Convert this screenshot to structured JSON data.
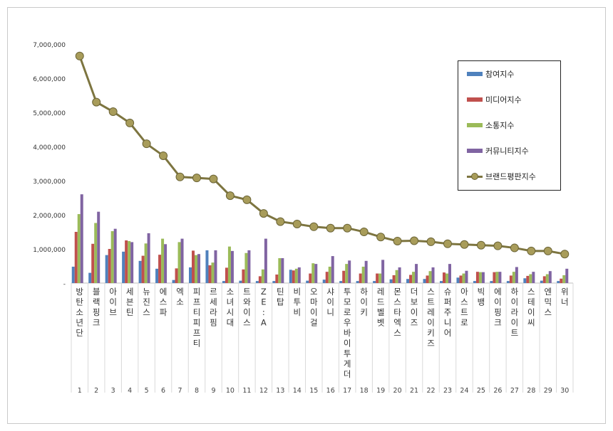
{
  "chart_data": {
    "type": "bar",
    "ylim": [
      0,
      7000000
    ],
    "yticks": [
      "-",
      "1,000,000",
      "2,000,000",
      "3,000,000",
      "4,000,000",
      "5,000,000",
      "6,000,000",
      "7,000,000"
    ],
    "ytick_values": [
      0,
      1000000,
      2000000,
      3000000,
      4000000,
      5000000,
      6000000,
      7000000
    ],
    "categories": [
      "방탄소년단",
      "블랙핑크",
      "아이브",
      "세븐틴",
      "뉴진스",
      "에스파",
      "엑소",
      "피프티피프티",
      "르세라핌",
      "소녀시대",
      "트와이스",
      "ZE:A",
      "틴탑",
      "비투비",
      "오마이걸",
      "샤이니",
      "투모로우바이투게더",
      "하이키",
      "레드벨벳",
      "몬스타엑스",
      "더보이즈",
      "스트레이키즈",
      "슈퍼주니어",
      "아스트로",
      "빅뱅",
      "에이핑크",
      "하이라이트",
      "스테이씨",
      "엔믹스",
      "위너"
    ],
    "ranks": [
      "1",
      "2",
      "3",
      "4",
      "5",
      "6",
      "7",
      "8",
      "9",
      "10",
      "11",
      "12",
      "13",
      "14",
      "15",
      "16",
      "17",
      "18",
      "19",
      "20",
      "21",
      "22",
      "23",
      "24",
      "25",
      "26",
      "27",
      "28",
      "29",
      "30"
    ],
    "series": [
      {
        "name": "참여지수",
        "color": "#4f81bd",
        "values": [
          480000,
          300000,
          820000,
          920000,
          650000,
          420000,
          90000,
          460000,
          960000,
          60000,
          70000,
          60000,
          60000,
          390000,
          70000,
          100000,
          60000,
          60000,
          60000,
          110000,
          120000,
          120000,
          60000,
          160000,
          60000,
          60000,
          60000,
          140000,
          70000,
          60000
        ]
      },
      {
        "name": "미디어지수",
        "color": "#c0504d",
        "values": [
          1500000,
          1150000,
          1000000,
          1250000,
          800000,
          830000,
          430000,
          950000,
          520000,
          450000,
          400000,
          200000,
          250000,
          370000,
          280000,
          330000,
          360000,
          280000,
          280000,
          230000,
          240000,
          220000,
          310000,
          220000,
          330000,
          320000,
          220000,
          210000,
          200000,
          130000
        ]
      },
      {
        "name": "소통지수",
        "color": "#9bbb59",
        "values": [
          2020000,
          1760000,
          1520000,
          1230000,
          1160000,
          1300000,
          1200000,
          820000,
          600000,
          1070000,
          880000,
          400000,
          730000,
          420000,
          580000,
          480000,
          560000,
          480000,
          280000,
          380000,
          330000,
          350000,
          280000,
          280000,
          320000,
          330000,
          330000,
          260000,
          260000,
          230000
        ]
      },
      {
        "name": "커뮤니티지수",
        "color": "#8064a2",
        "values": [
          2600000,
          2090000,
          1590000,
          1200000,
          1460000,
          1140000,
          1300000,
          850000,
          960000,
          940000,
          960000,
          1300000,
          730000,
          460000,
          560000,
          790000,
          660000,
          650000,
          680000,
          460000,
          560000,
          460000,
          560000,
          360000,
          320000,
          330000,
          470000,
          330000,
          350000,
          420000
        ]
      }
    ],
    "line": {
      "name": "브랜드평판지수",
      "color": "#7d7540",
      "values": [
        6650000,
        5300000,
        5020000,
        4690000,
        4080000,
        3730000,
        3110000,
        3080000,
        3050000,
        2560000,
        2440000,
        2040000,
        1800000,
        1730000,
        1650000,
        1610000,
        1610000,
        1500000,
        1350000,
        1230000,
        1240000,
        1210000,
        1150000,
        1130000,
        1110000,
        1090000,
        1030000,
        940000,
        940000,
        850000
      ]
    }
  }
}
